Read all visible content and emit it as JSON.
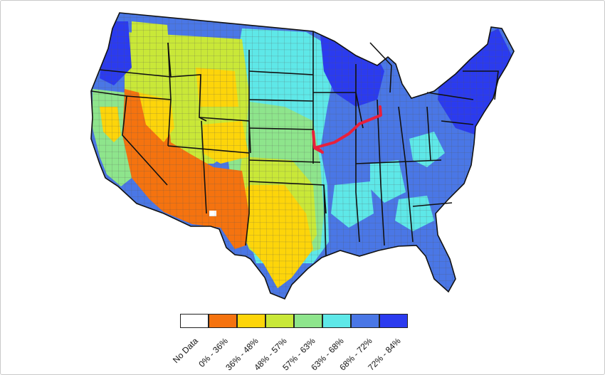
{
  "legend": {
    "items": [
      {
        "label": "No Data",
        "color": "#ffffff"
      },
      {
        "label": "0% - 36%",
        "color": "#f5730f"
      },
      {
        "label": "36% - 48%",
        "color": "#fdd50a"
      },
      {
        "label": "48% - 57%",
        "color": "#c9e838"
      },
      {
        "label": "57% - 63%",
        "color": "#8ee58c"
      },
      {
        "label": "63% - 68%",
        "color": "#5ee8e8"
      },
      {
        "label": "68% - 72%",
        "color": "#4a77e6"
      },
      {
        "label": "72% - 84%",
        "color": "#2b3bef"
      }
    ]
  },
  "colors": {
    "highlight_line": "#e8203c",
    "state_borders": "#111111",
    "county_borders": "#5a5a5a"
  }
}
